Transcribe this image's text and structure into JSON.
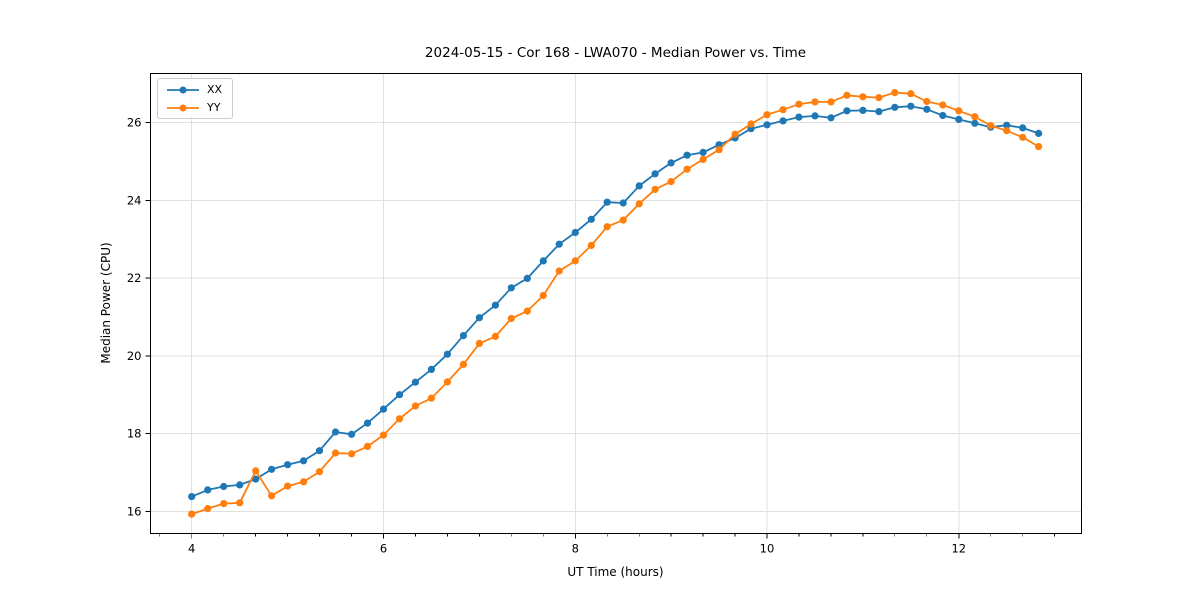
{
  "chart_data": {
    "type": "line",
    "title": "2024-05-15 - Cor 168 - LWA070 - Median Power vs. Time",
    "xlabel": "UT Time (hours)",
    "ylabel": "Median Power (CPU)",
    "xlim": [
      3.57,
      13.28
    ],
    "ylim": [
      15.43,
      27.26
    ],
    "x_ticks": [
      4,
      6,
      8,
      10,
      12
    ],
    "x_minor_tick_step": 0.33333,
    "y_ticks": [
      16,
      18,
      20,
      22,
      24,
      26
    ],
    "grid": true,
    "grid_color": "#e0e0e0",
    "legend": {
      "position": "upper left",
      "labels": [
        "XX",
        "YY"
      ]
    },
    "x": [
      4.0,
      4.167,
      4.333,
      4.5,
      4.667,
      4.833,
      5.0,
      5.167,
      5.333,
      5.5,
      5.667,
      5.833,
      6.0,
      6.167,
      6.333,
      6.5,
      6.667,
      6.833,
      7.0,
      7.167,
      7.333,
      7.5,
      7.667,
      7.833,
      8.0,
      8.167,
      8.333,
      8.5,
      8.667,
      8.833,
      9.0,
      9.167,
      9.333,
      9.5,
      9.667,
      9.833,
      10.0,
      10.167,
      10.333,
      10.5,
      10.667,
      10.833,
      11.0,
      11.167,
      11.333,
      11.5,
      11.667,
      11.833,
      12.0,
      12.167,
      12.333,
      12.5,
      12.667,
      12.833
    ],
    "series": [
      {
        "name": "XX",
        "color": "#1f77b4",
        "marker": "o",
        "values": [
          16.38,
          16.55,
          16.64,
          16.68,
          16.83,
          17.08,
          17.2,
          17.3,
          17.56,
          18.04,
          17.98,
          18.27,
          18.63,
          19.0,
          19.32,
          19.65,
          20.04,
          20.52,
          20.98,
          21.3,
          21.75,
          21.99,
          22.44,
          22.87,
          23.17,
          23.51,
          23.95,
          23.93,
          24.37,
          24.68,
          24.96,
          25.16,
          25.23,
          25.43,
          25.6,
          25.84,
          25.94,
          26.04,
          26.14,
          26.17,
          26.12,
          26.3,
          26.31,
          26.28,
          26.39,
          26.42,
          26.34,
          26.18,
          26.08,
          25.98,
          25.88,
          25.93,
          25.86,
          25.72
        ]
      },
      {
        "name": "YY",
        "color": "#ff7f0e",
        "marker": "o",
        "values": [
          15.93,
          16.07,
          16.2,
          16.22,
          17.04,
          16.4,
          16.65,
          16.76,
          17.02,
          17.5,
          17.48,
          17.67,
          17.96,
          18.38,
          18.71,
          18.91,
          19.33,
          19.78,
          20.32,
          20.5,
          20.96,
          21.15,
          21.55,
          22.18,
          22.44,
          22.84,
          23.32,
          23.49,
          23.91,
          24.28,
          24.48,
          24.8,
          25.05,
          25.3,
          25.7,
          25.96,
          26.2,
          26.33,
          26.47,
          26.53,
          26.53,
          26.7,
          26.66,
          26.64,
          26.77,
          26.74,
          26.54,
          26.45,
          26.3,
          26.15,
          25.92,
          25.79,
          25.62,
          25.38
        ]
      }
    ]
  }
}
